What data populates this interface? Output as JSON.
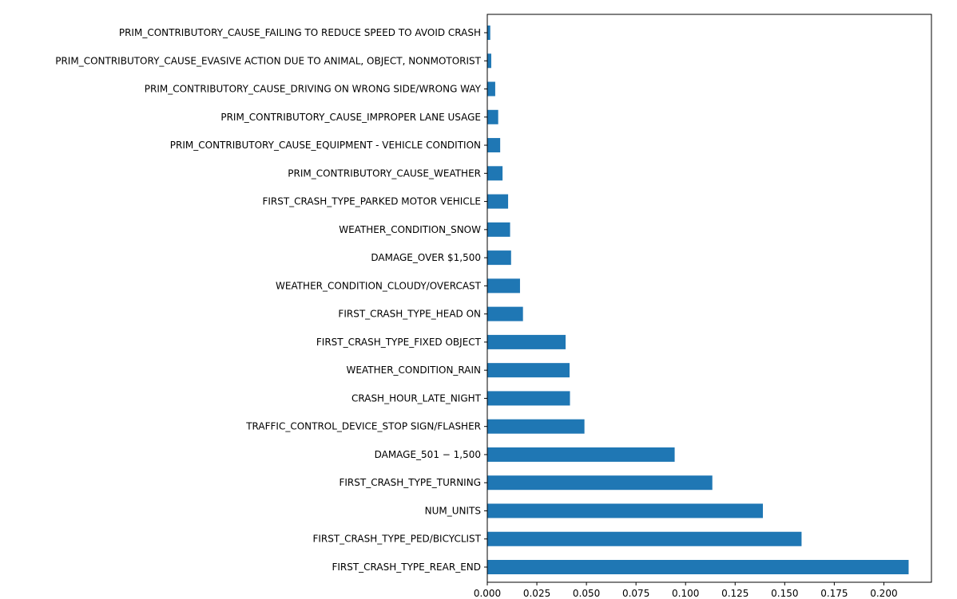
{
  "chart_data": {
    "type": "bar",
    "orientation": "horizontal",
    "title": "",
    "xlabel": "",
    "ylabel": "",
    "xlim": [
      0,
      0.224
    ],
    "xticks": [
      "0.000",
      "0.025",
      "0.050",
      "0.075",
      "0.100",
      "0.125",
      "0.150",
      "0.175",
      "0.200"
    ],
    "grid": false,
    "bar_color": "#1f77b4",
    "categories": [
      "PRIM_CONTRIBUTORY_CAUSE_FAILING TO REDUCE SPEED TO AVOID CRASH",
      "PRIM_CONTRIBUTORY_CAUSE_EVASIVE ACTION DUE TO ANIMAL, OBJECT, NONMOTORIST",
      "PRIM_CONTRIBUTORY_CAUSE_DRIVING ON WRONG SIDE/WRONG WAY",
      "PRIM_CONTRIBUTORY_CAUSE_IMPROPER LANE USAGE",
      "PRIM_CONTRIBUTORY_CAUSE_EQUIPMENT - VEHICLE CONDITION",
      "PRIM_CONTRIBUTORY_CAUSE_WEATHER",
      "FIRST_CRASH_TYPE_PARKED MOTOR VEHICLE",
      "WEATHER_CONDITION_SNOW",
      "DAMAGE_OVER $1,500",
      "WEATHER_CONDITION_CLOUDY/OVERCAST",
      "FIRST_CRASH_TYPE_HEAD ON",
      "FIRST_CRASH_TYPE_FIXED OBJECT",
      "WEATHER_CONDITION_RAIN",
      "CRASH_HOUR_LATE_NIGHT",
      "TRAFFIC_CONTROL_DEVICE_STOP SIGN/FLASHER",
      "DAMAGE_501 − 1,500",
      "FIRST_CRASH_TYPE_TURNING",
      "NUM_UNITS",
      "FIRST_CRASH_TYPE_PED/BICYCLIST",
      "FIRST_CRASH_TYPE_REAR_END"
    ],
    "values": [
      0.0015,
      0.002,
      0.004,
      0.0055,
      0.0065,
      0.0077,
      0.0105,
      0.0115,
      0.012,
      0.0165,
      0.018,
      0.0395,
      0.0415,
      0.0417,
      0.049,
      0.0945,
      0.1135,
      0.139,
      0.1585,
      0.2125
    ]
  }
}
